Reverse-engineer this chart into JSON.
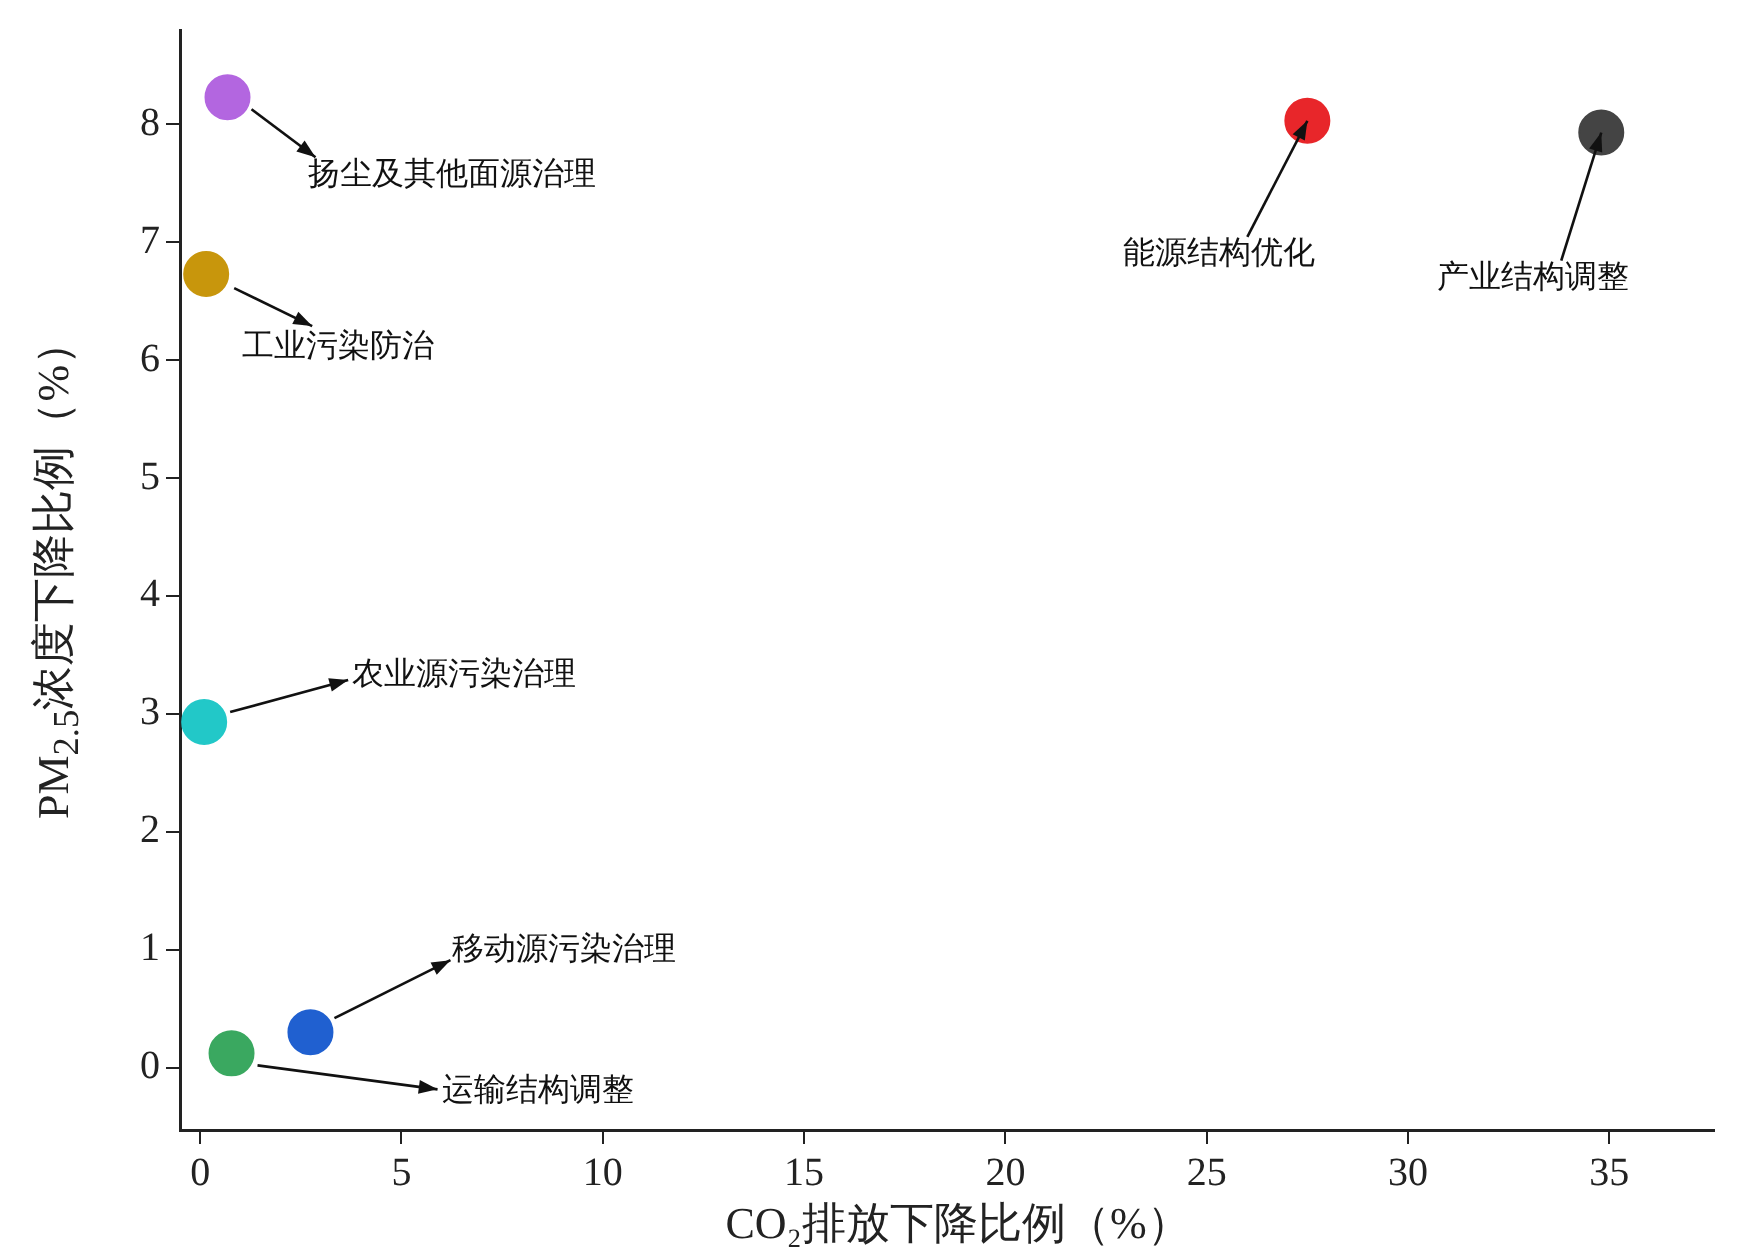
{
  "chart_data": {
    "type": "scatter",
    "xlabel": "CO₂排放下降比例（%）",
    "ylabel": "PM$_{2.5}$浓度下降比例（%）",
    "x": [
      0.68,
      27.5,
      34.8,
      0.15,
      0.1,
      2.74,
      0.78
    ],
    "values": [
      8.23,
      8.03,
      7.93,
      6.73,
      2.93,
      0.3,
      0.12
    ],
    "colors": [
      "#b366e0",
      "#e8262a",
      "#444444",
      "#c8960c",
      "#22c8c8",
      "#2060d0",
      "#3aa860"
    ],
    "marker": "circle",
    "xlim": [
      -0.5,
      37.6
    ],
    "xticks": [
      0,
      5,
      10,
      15,
      20,
      25,
      30,
      35
    ],
    "ylim": [
      -0.53,
      8.8
    ],
    "yticks": [
      0,
      1,
      2,
      3,
      4,
      5,
      6,
      7,
      8
    ],
    "annotations": [
      "扬尘及其他面源治理",
      {
        "text": "能源结构优化",
        "x": 27.5,
        "y": 8.03
      },
      {
        "text": "产业结构调整",
        "x": 34.8,
        "y": 7.93
      },
      {
        "text": "工业污染防治",
        "x": 0.15,
        "y": 6.73
      },
      "农业源污染治理",
      "移动源污染治理",
      "运输结构调整"
    ]
  }
}
